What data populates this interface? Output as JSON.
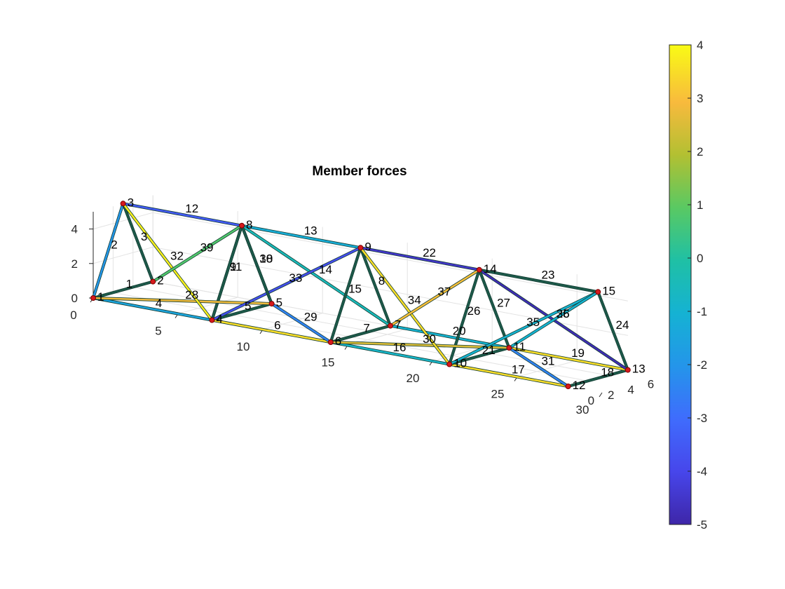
{
  "title": "Member forces",
  "axes": {
    "x_ticks": [
      "0",
      "5",
      "10",
      "15",
      "20",
      "25",
      "30"
    ],
    "y_ticks": [
      "0",
      "2",
      "4",
      "6"
    ],
    "z_ticks": [
      "0",
      "2",
      "4"
    ]
  },
  "colorbar": {
    "min": -5,
    "max": 4,
    "ticks": [
      "4",
      "3",
      "2",
      "1",
      "0",
      "-1",
      "-2",
      "-3",
      "-4",
      "-5"
    ]
  },
  "nodes": [
    {
      "id": "1",
      "x": 0,
      "y": 0,
      "z": 0
    },
    {
      "id": "2",
      "x": 0,
      "y": 6,
      "z": 0
    },
    {
      "id": "3",
      "x": 0,
      "y": 3,
      "z": 5
    },
    {
      "id": "4",
      "x": 7,
      "y": 0,
      "z": 0
    },
    {
      "id": "5",
      "x": 7,
      "y": 6,
      "z": 0
    },
    {
      "id": "6",
      "x": 14,
      "y": 0,
      "z": 0
    },
    {
      "id": "7",
      "x": 14,
      "y": 6,
      "z": 0
    },
    {
      "id": "8",
      "x": 7,
      "y": 3,
      "z": 5
    },
    {
      "id": "9",
      "x": 14,
      "y": 3,
      "z": 5
    },
    {
      "id": "10",
      "x": 21,
      "y": 0,
      "z": 0
    },
    {
      "id": "11",
      "x": 21,
      "y": 6,
      "z": 0
    },
    {
      "id": "12",
      "x": 28,
      "y": 0,
      "z": 0
    },
    {
      "id": "13",
      "x": 28,
      "y": 6,
      "z": 0
    },
    {
      "id": "14",
      "x": 21,
      "y": 3,
      "z": 5
    },
    {
      "id": "15",
      "x": 28,
      "y": 3,
      "z": 5
    }
  ],
  "members": [
    {
      "id": "1",
      "a": "1",
      "b": "2",
      "force": -0.3
    },
    {
      "id": "2",
      "a": "1",
      "b": "3",
      "force": -2.0
    },
    {
      "id": "3",
      "a": "2",
      "b": "3",
      "force": -0.3
    },
    {
      "id": "4",
      "a": "1",
      "b": "4",
      "force": -1.5
    },
    {
      "id": "5",
      "a": "4",
      "b": "5",
      "force": -0.3
    },
    {
      "id": "6",
      "a": "4",
      "b": "6",
      "force": 3.5
    },
    {
      "id": "7",
      "a": "6",
      "b": "7",
      "force": -0.3
    },
    {
      "id": "8",
      "a": "7",
      "b": "9",
      "force": -0.3
    },
    {
      "id": "9",
      "a": "4",
      "b": "8",
      "force": -0.6
    },
    {
      "id": "10",
      "a": "5",
      "b": "8",
      "force": -0.3
    },
    {
      "id": "11",
      "a": "4",
      "b": "8",
      "force": -0.3
    },
    {
      "id": "12",
      "a": "3",
      "b": "8",
      "force": -3.5
    },
    {
      "id": "13",
      "a": "8",
      "b": "9",
      "force": -1.2
    },
    {
      "id": "14",
      "a": "8",
      "b": "7",
      "force": -0.5
    },
    {
      "id": "15",
      "a": "6",
      "b": "9",
      "force": -0.3
    },
    {
      "id": "16",
      "a": "6",
      "b": "10",
      "force": -0.8
    },
    {
      "id": "17",
      "a": "10",
      "b": "12",
      "force": 3.5
    },
    {
      "id": "18",
      "a": "12",
      "b": "13",
      "force": -0.3
    },
    {
      "id": "19",
      "a": "11",
      "b": "13",
      "force": 3.5
    },
    {
      "id": "20",
      "a": "7",
      "b": "11",
      "force": -1.0
    },
    {
      "id": "21",
      "a": "10",
      "b": "11",
      "force": -0.3
    },
    {
      "id": "22",
      "a": "9",
      "b": "14",
      "force": -4.5
    },
    {
      "id": "23",
      "a": "14",
      "b": "15",
      "force": 0.3
    },
    {
      "id": "24",
      "a": "13",
      "b": "15",
      "force": -0.3
    },
    {
      "id": "25",
      "a": "14",
      "b": "13",
      "force": -4.8
    },
    {
      "id": "26",
      "a": "10",
      "b": "14",
      "force": -0.3
    },
    {
      "id": "27",
      "a": "11",
      "b": "14",
      "force": -0.3
    },
    {
      "id": "28",
      "a": "1",
      "b": "5",
      "force": 2.8
    },
    {
      "id": "29",
      "a": "5",
      "b": "6",
      "force": -2.5
    },
    {
      "id": "30",
      "a": "6",
      "b": "11",
      "force": 2.5
    },
    {
      "id": "31",
      "a": "11",
      "b": "12",
      "force": -2.5
    },
    {
      "id": "32",
      "a": "3",
      "b": "4",
      "force": 3.8
    },
    {
      "id": "33",
      "a": "4",
      "b": "9",
      "force": -3.8
    },
    {
      "id": "34",
      "a": "9",
      "b": "10",
      "force": 3.5
    },
    {
      "id": "35",
      "a": "10",
      "b": "15",
      "force": -1.0
    },
    {
      "id": "36",
      "a": "11",
      "b": "15",
      "force": -1.0
    },
    {
      "id": "37",
      "a": "7",
      "b": "14",
      "force": 3.0
    },
    {
      "id": "38",
      "a": "8",
      "b": "5",
      "force": -0.3
    },
    {
      "id": "39",
      "a": "2",
      "b": "8",
      "force": 0.8
    }
  ]
}
